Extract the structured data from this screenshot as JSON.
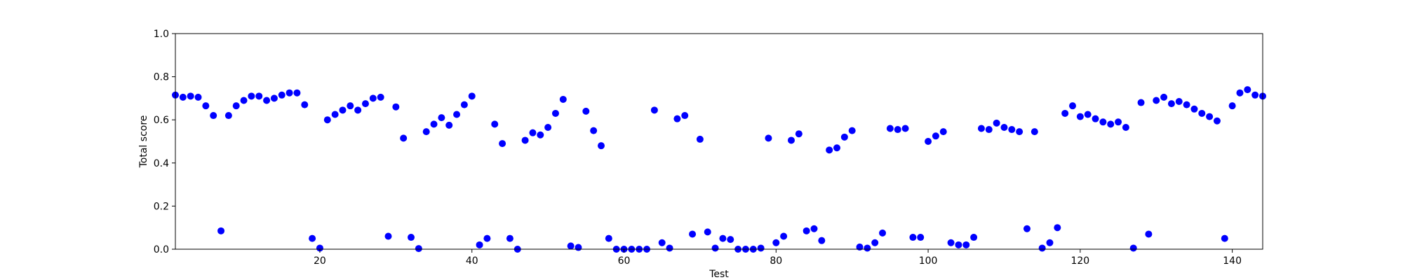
{
  "chart_data": {
    "type": "scatter",
    "xlabel": "Test",
    "ylabel": "Total score",
    "xlim": [
      1,
      144
    ],
    "ylim": [
      0.0,
      1.0
    ],
    "x_ticks": [
      20,
      40,
      60,
      80,
      100,
      120,
      140
    ],
    "y_ticks": [
      "0.0",
      "0.2",
      "0.4",
      "0.6",
      "0.8",
      "1.0"
    ],
    "grid": false,
    "marker_color": "#0000ff",
    "series": [
      {
        "x": [
          1,
          2,
          3,
          4,
          5,
          6,
          7,
          8,
          9,
          10,
          11,
          12,
          13,
          14,
          15,
          16,
          17,
          18,
          19,
          20,
          21,
          22,
          23,
          24,
          25,
          26,
          27,
          28,
          29,
          30,
          31,
          32,
          33,
          34,
          35,
          36,
          37,
          38,
          39,
          40,
          41,
          42,
          43,
          44,
          45,
          46,
          47,
          48,
          49,
          50,
          51,
          52,
          53,
          54,
          55,
          56,
          57,
          58,
          59,
          60,
          61,
          62,
          63,
          64,
          65,
          66,
          67,
          68,
          69,
          70,
          71,
          72,
          73,
          74,
          75,
          76,
          77,
          78,
          79,
          80,
          81,
          82,
          83,
          84,
          85,
          86,
          87,
          88,
          89,
          90,
          91,
          92,
          93,
          94,
          95,
          96,
          97,
          98,
          99,
          100,
          101,
          102,
          103,
          104,
          105,
          106,
          107,
          108,
          109,
          110,
          111,
          112,
          113,
          114,
          115,
          116,
          117,
          118,
          119,
          120,
          121,
          122,
          123,
          124,
          125,
          126,
          127,
          128,
          129,
          130,
          131,
          132,
          133,
          134,
          135,
          136,
          137,
          138,
          139,
          140,
          141,
          142,
          143,
          144
        ],
        "y": [
          0.715,
          0.705,
          0.71,
          0.705,
          0.665,
          0.62,
          0.085,
          0.62,
          0.665,
          0.69,
          0.71,
          0.71,
          0.69,
          0.7,
          0.715,
          0.725,
          0.725,
          0.67,
          0.05,
          0.005,
          0.6,
          0.625,
          0.645,
          0.665,
          0.645,
          0.675,
          0.7,
          0.705,
          0.06,
          0.66,
          0.515,
          0.055,
          0.003,
          0.545,
          0.58,
          0.61,
          0.575,
          0.625,
          0.67,
          0.71,
          0.02,
          0.05,
          0.58,
          0.49,
          0.05,
          0.0,
          0.505,
          0.54,
          0.53,
          0.565,
          0.63,
          0.695,
          0.015,
          0.008,
          0.64,
          0.55,
          0.48,
          0.05,
          0.0,
          0.0,
          0.0,
          0.0,
          0.0,
          0.645,
          0.03,
          0.005,
          0.605,
          0.62,
          0.07,
          0.51,
          0.08,
          0.005,
          0.05,
          0.045,
          0.0,
          0.0,
          0.0,
          0.005,
          0.515,
          0.03,
          0.06,
          0.505,
          0.535,
          0.085,
          0.095,
          0.04,
          0.46,
          0.47,
          0.52,
          0.55,
          0.01,
          0.005,
          0.03,
          0.075,
          0.56,
          0.555,
          0.56,
          0.055,
          0.055,
          0.5,
          0.525,
          0.545,
          0.03,
          0.02,
          0.02,
          0.055,
          0.56,
          0.555,
          0.585,
          0.565,
          0.555,
          0.545,
          0.095,
          0.545,
          0.005,
          0.03,
          0.1,
          0.63,
          0.665,
          0.615,
          0.625,
          0.605,
          0.59,
          0.58,
          0.59,
          0.565,
          0.005,
          0.68,
          0.07,
          0.69,
          0.705,
          0.675,
          0.685,
          0.67,
          0.65,
          0.63,
          0.615,
          0.595,
          0.05,
          0.665,
          0.725,
          0.74,
          0.715,
          0.71
        ]
      }
    ]
  }
}
